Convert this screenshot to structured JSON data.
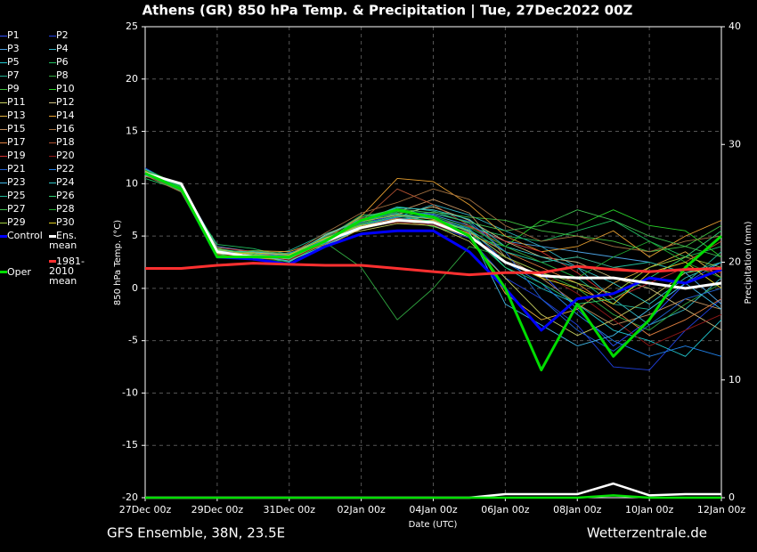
{
  "chart_data": {
    "type": "line",
    "title": "Athens  (GR)  850 hPa Temp. & Precipitation | Tue, 27Dec2022 00Z",
    "footer_left": "GFS Ensemble, 38N, 23.5E",
    "footer_right": "Wetterzentrale.de",
    "ylabel": "850 hPa Temp. (°C)",
    "y2label": "Precipitation (mm)",
    "xlabel": "Date (UTC)",
    "categories": [
      "27Dec 00z",
      null,
      "29Dec 00z",
      null,
      "31Dec 00z",
      null,
      "02Jan 00z",
      null,
      "04Jan 00z",
      null,
      "06Jan 00z",
      null,
      "08Jan 00z",
      null,
      "10Jan 00z",
      null,
      "12Jan 00z"
    ],
    "ylim": [
      -20,
      25
    ],
    "yticks": [
      -20,
      -15,
      -10,
      -5,
      0,
      5,
      10,
      15,
      20,
      25
    ],
    "y2lim": [
      0,
      40
    ],
    "y2ticks": [
      0,
      10,
      20,
      30,
      40
    ],
    "grid": true,
    "series": [
      {
        "name": "P1",
        "color": "#3050ff",
        "values": [
          11,
          9.8,
          3.2,
          3.4,
          2.8,
          4.8,
          6.2,
          7.0,
          6.8,
          5.5,
          3.0,
          1.5,
          -2.0,
          -5.5,
          -3.0,
          0.5,
          2.5
        ]
      },
      {
        "name": "P2",
        "color": "#2040e0",
        "values": [
          11.5,
          9.6,
          3.8,
          2.9,
          3.2,
          4.2,
          6.5,
          7.2,
          6.0,
          4.8,
          1.0,
          -1.0,
          -3.5,
          -7.5,
          -7.8,
          -4.0,
          -1.0
        ]
      },
      {
        "name": "P3",
        "color": "#4aa0e0",
        "values": [
          10.8,
          9.9,
          4.0,
          3.5,
          3.0,
          5.0,
          6.8,
          7.5,
          7.0,
          6.0,
          4.5,
          4.0,
          3.5,
          3.0,
          2.5,
          1.5,
          -1.5
        ]
      },
      {
        "name": "P4",
        "color": "#30b0c0",
        "values": [
          11.2,
          9.2,
          3.0,
          3.2,
          2.5,
          4.5,
          6.0,
          6.8,
          8.0,
          7.0,
          5.5,
          4.0,
          2.0,
          -1.0,
          -3.5,
          -2.0,
          1.0
        ]
      },
      {
        "name": "P5",
        "color": "#20c8d0",
        "values": [
          11,
          10.0,
          3.5,
          2.8,
          3.4,
          4.0,
          5.8,
          6.5,
          6.5,
          5.5,
          2.0,
          0.0,
          -1.5,
          -4.0,
          -5.0,
          -6.5,
          -3.0
        ]
      },
      {
        "name": "P6",
        "color": "#20c060",
        "values": [
          10.5,
          9.4,
          4.2,
          3.8,
          3.0,
          4.8,
          7.0,
          7.2,
          6.2,
          5.8,
          5.0,
          4.5,
          5.5,
          6.5,
          4.5,
          3.0,
          4.0
        ]
      },
      {
        "name": "P7",
        "color": "#20b090",
        "values": [
          11.3,
          9.7,
          3.4,
          3.0,
          3.6,
          5.2,
          6.4,
          7.8,
          7.4,
          6.2,
          3.5,
          2.5,
          1.0,
          -1.5,
          -2.0,
          0.5,
          3.5
        ]
      },
      {
        "name": "P8",
        "color": "#30a840",
        "values": [
          11,
          9.5,
          3.6,
          3.3,
          2.9,
          4.4,
          2.0,
          -3.0,
          0.0,
          4.0,
          3.0,
          1.5,
          0.0,
          -2.5,
          -4.0,
          -1.5,
          0.5
        ]
      },
      {
        "name": "P9",
        "color": "#40c040",
        "values": [
          10.9,
          9.3,
          3.1,
          3.5,
          3.1,
          4.6,
          6.1,
          6.9,
          7.3,
          6.8,
          6.5,
          5.5,
          5.0,
          4.5,
          3.5,
          4.0,
          6.0
        ]
      },
      {
        "name": "P10",
        "color": "#28d028",
        "values": [
          11.4,
          9.8,
          3.9,
          2.7,
          2.6,
          4.3,
          6.3,
          6.6,
          5.9,
          5.0,
          4.0,
          6.5,
          6.0,
          7.5,
          6.0,
          5.5,
          3.0
        ]
      },
      {
        "name": "P11",
        "color": "#c8d060",
        "values": [
          11,
          9.6,
          3.3,
          3.1,
          3.3,
          4.9,
          5.5,
          6.2,
          6.0,
          4.5,
          1.0,
          -2.5,
          -4.5,
          -3.0,
          -1.0,
          1.5,
          2.0
        ]
      },
      {
        "name": "P12",
        "color": "#d0c080",
        "values": [
          11.1,
          9.4,
          3.7,
          3.4,
          3.0,
          5.1,
          6.6,
          7.1,
          7.8,
          6.5,
          4.5,
          3.0,
          2.5,
          1.0,
          0.0,
          -2.0,
          -4.0
        ]
      },
      {
        "name": "P13",
        "color": "#e0b040",
        "values": [
          10.7,
          9.9,
          3.2,
          2.9,
          2.7,
          4.0,
          5.7,
          6.4,
          6.5,
          5.2,
          -0.5,
          -3.0,
          -2.0,
          0.5,
          2.0,
          3.5,
          1.0
        ]
      },
      {
        "name": "P14",
        "color": "#e8a030",
        "values": [
          11.2,
          9.5,
          3.5,
          3.6,
          3.5,
          4.7,
          6.9,
          10.5,
          10.2,
          8.0,
          5.0,
          3.5,
          4.0,
          5.5,
          3.0,
          5.0,
          6.5
        ]
      },
      {
        "name": "P15",
        "color": "#c09060",
        "values": [
          11,
          9.7,
          3.8,
          3.0,
          2.8,
          4.5,
          6.2,
          7.3,
          8.5,
          7.2,
          3.0,
          1.0,
          -1.5,
          -3.5,
          -2.5,
          -1.0,
          -2.0
        ]
      },
      {
        "name": "P16",
        "color": "#a07040",
        "values": [
          10.8,
          9.2,
          3.0,
          3.2,
          3.2,
          5.3,
          7.2,
          8.2,
          9.5,
          8.5,
          6.0,
          4.5,
          5.0,
          4.0,
          3.5,
          4.5,
          5.0
        ]
      },
      {
        "name": "P17",
        "color": "#e08040",
        "values": [
          11.3,
          9.6,
          3.6,
          3.3,
          2.9,
          4.2,
          6.0,
          6.7,
          6.4,
          5.3,
          3.5,
          2.0,
          0.5,
          -2.0,
          -4.5,
          -3.0,
          -1.0
        ]
      },
      {
        "name": "P18",
        "color": "#b05030",
        "values": [
          11,
          9.8,
          3.4,
          2.8,
          3.0,
          4.6,
          6.4,
          9.5,
          8.0,
          6.0,
          4.0,
          2.5,
          3.0,
          2.0,
          1.5,
          2.5,
          4.5
        ]
      },
      {
        "name": "P19",
        "color": "#d03030",
        "values": [
          11.1,
          9.3,
          3.9,
          3.5,
          3.3,
          4.9,
          6.7,
          7.0,
          6.6,
          5.9,
          4.5,
          3.5,
          1.5,
          -1.0,
          0.5,
          2.0,
          1.5
        ]
      },
      {
        "name": "P20",
        "color": "#901818",
        "values": [
          10.9,
          9.5,
          3.2,
          3.1,
          2.7,
          4.4,
          5.9,
          6.3,
          6.1,
          4.9,
          3.0,
          1.5,
          -0.5,
          -3.0,
          -5.5,
          -4.0,
          -2.5
        ]
      },
      {
        "name": "P21",
        "color": "#2060d0",
        "values": [
          11.2,
          9.7,
          3.5,
          3.4,
          3.1,
          4.8,
          6.3,
          7.4,
          7.1,
          6.4,
          3.5,
          -1.0,
          -4.0,
          -6.0,
          -3.5,
          -1.0,
          0.0
        ]
      },
      {
        "name": "P22",
        "color": "#2080e8",
        "values": [
          11,
          9.4,
          3.7,
          2.9,
          3.4,
          4.3,
          6.0,
          6.8,
          6.9,
          5.7,
          2.5,
          0.5,
          -2.5,
          -5.0,
          -6.5,
          -5.5,
          -6.5
        ]
      },
      {
        "name": "P23",
        "color": "#40b8e8",
        "values": [
          10.8,
          9.9,
          3.3,
          3.2,
          2.6,
          4.1,
          5.8,
          6.6,
          6.8,
          5.4,
          -1.5,
          -3.5,
          -5.5,
          -4.5,
          -2.0,
          0.5,
          -2.0
        ]
      },
      {
        "name": "P24",
        "color": "#30c8c8",
        "values": [
          11.4,
          9.6,
          3.6,
          3.5,
          3.2,
          5.0,
          6.6,
          7.7,
          7.5,
          6.6,
          4.0,
          3.0,
          2.0,
          0.5,
          -1.5,
          1.0,
          2.5
        ]
      },
      {
        "name": "P25",
        "color": "#20b898",
        "values": [
          11,
          9.5,
          3.4,
          3.0,
          3.0,
          4.6,
          6.5,
          7.1,
          6.7,
          5.6,
          3.5,
          2.5,
          3.0,
          2.0,
          2.5,
          1.5,
          2.5
        ]
      },
      {
        "name": "P26",
        "color": "#30d070",
        "values": [
          11.1,
          9.8,
          3.8,
          3.3,
          2.8,
          4.7,
          6.1,
          6.9,
          6.4,
          5.1,
          2.0,
          0.5,
          -1.5,
          -1.0,
          1.0,
          3.0,
          5.5
        ]
      },
      {
        "name": "P27",
        "color": "#40c050",
        "values": [
          10.9,
          9.3,
          3.1,
          3.6,
          3.3,
          4.5,
          6.8,
          7.6,
          7.2,
          6.3,
          5.5,
          6.0,
          7.5,
          6.5,
          5.0,
          4.0,
          3.0
        ]
      },
      {
        "name": "P28",
        "color": "#20a830",
        "values": [
          11.3,
          9.7,
          3.5,
          2.8,
          3.1,
          4.9,
          6.2,
          7.3,
          6.9,
          5.8,
          4.0,
          2.5,
          1.0,
          3.0,
          4.5,
          2.5,
          1.0
        ]
      },
      {
        "name": "P29",
        "color": "#a0d040",
        "values": [
          11,
          9.6,
          3.7,
          3.2,
          2.9,
          4.4,
          6.4,
          7.0,
          6.6,
          5.5,
          3.0,
          1.5,
          0.5,
          -0.5,
          2.0,
          3.0,
          2.0
        ]
      },
      {
        "name": "P30",
        "color": "#e0d020",
        "values": [
          11.2,
          9.4,
          3.3,
          3.4,
          3.2,
          4.8,
          6.0,
          6.5,
          6.3,
          5.0,
          2.5,
          1.0,
          0.0,
          -1.5,
          1.5,
          2.5,
          0.0
        ]
      },
      {
        "name": "Control",
        "color": "#0000ff",
        "values": [
          11,
          9.5,
          3.0,
          2.8,
          2.3,
          4.0,
          5.2,
          5.5,
          5.5,
          3.5,
          0.0,
          -4.0,
          -1.0,
          -0.5,
          1.0,
          0.5,
          1.8
        ]
      },
      {
        "name": "Ens. mean",
        "color": "#ffffff",
        "values": [
          11,
          10,
          3.5,
          3,
          3,
          4.5,
          5.8,
          6.5,
          6.3,
          5,
          2.5,
          1.2,
          1,
          1,
          0.5,
          0,
          0.5
        ],
        "precipitation": [
          0,
          0,
          0,
          0,
          0,
          0,
          0,
          0,
          0,
          0,
          0.3,
          0.3,
          0.3,
          1.2,
          0.2,
          0.3,
          0.3
        ]
      },
      {
        "name": "Oper",
        "color": "#00dd00",
        "values": [
          11,
          9.5,
          3,
          3,
          3,
          4.5,
          6.5,
          7.5,
          6.8,
          5,
          0,
          -7.8,
          -1.5,
          -6.5,
          -3,
          2,
          5
        ],
        "precipitation": [
          0,
          0,
          0,
          0,
          0,
          0,
          0,
          0,
          0,
          0,
          0,
          0,
          0,
          0.2,
          0,
          0,
          0
        ]
      },
      {
        "name": "1981-2010 mean",
        "color": "#ff3030",
        "values": [
          1.9,
          1.9,
          2.2,
          2.4,
          2.3,
          2.2,
          2.2,
          1.9,
          1.6,
          1.3,
          1.5,
          1.5,
          2.1,
          1.8,
          1.6,
          1.8,
          1.9
        ]
      }
    ]
  }
}
